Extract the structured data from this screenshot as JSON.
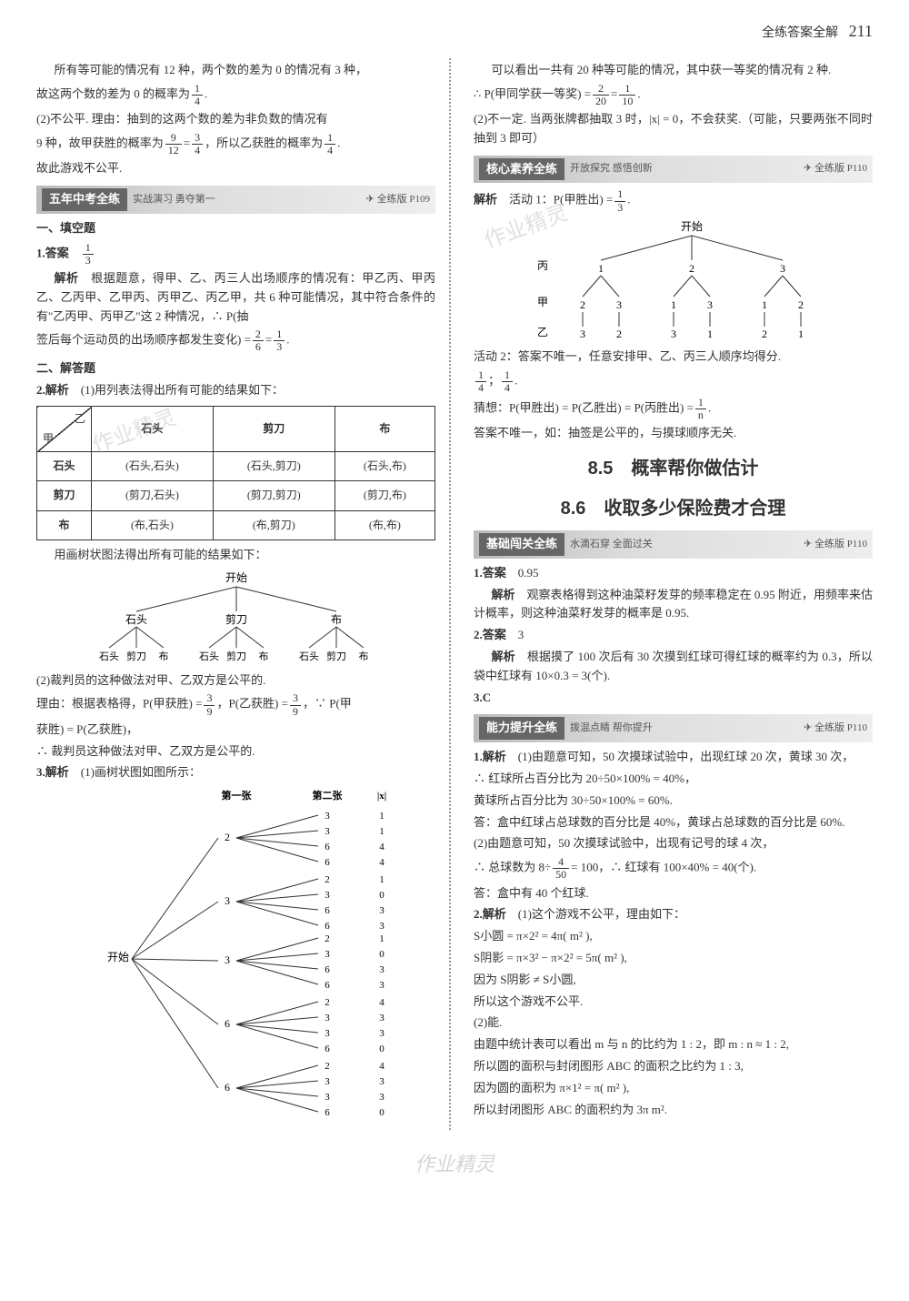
{
  "header": {
    "title": "全练答案全解",
    "page": "211"
  },
  "left": {
    "intro": [
      "所有等可能的情况有 12 种，两个数的差为 0 的情况有 3 种，",
      "故这两个数的差为 0 的概率为 1/4.",
      "(2)不公平. 理由：抽到的这两个数的差为非负数的情况有",
      "9 种，故甲获胜的概率为 9/12 = 3/4，所以乙获胜的概率为 1/4.",
      "故此游戏不公平."
    ],
    "bar1": {
      "title": "五年中考全练",
      "subtitle": "实战演习 勇夺第一",
      "ref": "全练版 P109"
    },
    "h1": "一、填空题",
    "q1_ans_label": "1.答案",
    "q1_ans": "1/3",
    "q1_exp_label": "解析",
    "q1_exp": [
      "根据题意，得甲、乙、丙三人出场顺序的情况有：甲乙丙、甲丙乙、乙丙甲、乙甲丙、丙甲乙、丙乙甲，共 6 种可能情况，其中符合条件的有\"乙丙甲、丙甲乙\"这 2 种情况，∴ P(抽",
      "签后每个运动员的出场顺序都发生变化) = 2/6 = 1/3."
    ],
    "h2": "二、解答题",
    "q2_label": "2.解析",
    "q2_intro": "(1)用列表法得出所有可能的结果如下：",
    "table": {
      "diag_top": "乙",
      "diag_bot": "甲",
      "cols": [
        "石头",
        "剪刀",
        "布"
      ],
      "rows": [
        {
          "h": "石头",
          "cells": [
            "(石头,石头)",
            "(石头,剪刀)",
            "(石头,布)"
          ]
        },
        {
          "h": "剪刀",
          "cells": [
            "(剪刀,石头)",
            "(剪刀,剪刀)",
            "(剪刀,布)"
          ]
        },
        {
          "h": "布",
          "cells": [
            "(布,石头)",
            "(布,剪刀)",
            "(布,布)"
          ]
        }
      ]
    },
    "tree1_caption": "用画树状图法得出所有可能的结果如下：",
    "tree1": {
      "root": "开始",
      "level1": [
        "石头",
        "剪刀",
        "布"
      ],
      "level2": [
        "石头",
        "剪刀",
        "布",
        "石头",
        "剪刀",
        "布",
        "石头",
        "剪刀",
        "布"
      ]
    },
    "q2_part2": [
      "(2)裁判员的这种做法对甲、乙双方是公平的.",
      "理由：根据表格得，P(甲获胜) = 3/9，P(乙获胜) = 3/9，∵ P(甲",
      "获胜) = P(乙获胜)，",
      "∴ 裁判员这种做法对甲、乙双方是公平的."
    ],
    "q3_label": "3.解析",
    "q3_intro": "(1)画树状图如图所示：",
    "tree2": {
      "root": "开始",
      "headers": [
        "第一张",
        "第二张",
        "|x|"
      ],
      "branches": [
        {
          "a": "2",
          "children": [
            [
              "3",
              "1"
            ],
            [
              "3",
              "1"
            ],
            [
              "6",
              "4"
            ],
            [
              "6",
              "4"
            ]
          ]
        },
        {
          "a": "3",
          "children": [
            [
              "2",
              "1"
            ],
            [
              "3",
              "0"
            ],
            [
              "6",
              "3"
            ],
            [
              "6",
              "3"
            ]
          ]
        },
        {
          "a": "3",
          "children": [
            [
              "2",
              "1"
            ],
            [
              "3",
              "0"
            ],
            [
              "6",
              "3"
            ],
            [
              "6",
              "3"
            ]
          ]
        },
        {
          "a": "6",
          "children": [
            [
              "2",
              "4"
            ],
            [
              "3",
              "3"
            ],
            [
              "3",
              "3"
            ],
            [
              "6",
              "0"
            ]
          ]
        },
        {
          "a": "6",
          "children": [
            [
              "2",
              "4"
            ],
            [
              "3",
              "3"
            ],
            [
              "3",
              "3"
            ],
            [
              "6",
              "0"
            ]
          ]
        }
      ]
    }
  },
  "right": {
    "intro": [
      "可以看出一共有 20 种等可能的情况，其中获一等奖的情况有 2 种.",
      "∴ P(甲同学获一等奖) = 2/20 = 1/10.",
      "(2)不一定. 当两张牌都抽取 3 时，|x| = 0，不会获奖.（可能，只要两张不同时抽到 3 即可）"
    ],
    "bar2": {
      "title": "核心素养全练",
      "subtitle": "开放探究 感悟创新",
      "ref": "全练版 P110"
    },
    "act1_label": "解析",
    "act1": "活动 1：P(甲胜出) = 1/3.",
    "tree3": {
      "root": "开始",
      "rows": [
        "丙",
        "甲",
        "乙"
      ],
      "level1": [
        "1",
        "2",
        "3"
      ],
      "level2": [
        "2",
        "3",
        "1",
        "3",
        "1",
        "2"
      ],
      "level3": [
        "3",
        "2",
        "3",
        "1",
        "2",
        "1"
      ]
    },
    "act2": [
      "活动 2：答案不唯一，任意安排甲、乙、丙三人顺序均得分.",
      "1/4；1/4.",
      "猜想：P(甲胜出) = P(乙胜出) = P(丙胜出) = 1/n.",
      "答案不唯一，如：抽签是公平的，与摸球顺序无关."
    ],
    "ch85": "8.5　概率帮你做估计",
    "ch86": "8.6　收取多少保险费才合理",
    "bar3": {
      "title": "基础闯关全练",
      "subtitle": "水滴石穿 全面过关",
      "ref": "全练版 P110"
    },
    "b1_ans_label": "1.答案",
    "b1_ans": "0.95",
    "b1_exp_label": "解析",
    "b1_exp": "观察表格得到这种油菜籽发芽的频率稳定在 0.95 附近，用频率来估计概率，则这种油菜籽发芽的概率是 0.95.",
    "b2_ans_label": "2.答案",
    "b2_ans": "3",
    "b2_exp_label": "解析",
    "b2_exp": "根据摸了 100 次后有 30 次摸到红球可得红球的概率约为 0.3，所以袋中红球有 10×0.3 = 3(个).",
    "b3": "3.C",
    "bar4": {
      "title": "能力提升全练",
      "subtitle": "拨混点睛 帮你提升",
      "ref": "全练版 P110"
    },
    "c1_label": "1.解析",
    "c1": [
      "(1)由题意可知，50 次摸球试验中，出现红球 20 次，黄球 30 次，",
      "∴ 红球所占百分比为 20÷50×100% = 40%，",
      "黄球所占百分比为 30÷50×100% = 60%.",
      "答：盒中红球占总球数的百分比是 40%，黄球占总球数的百分比是 60%.",
      "(2)由题意可知，50 次摸球试验中，出现有记号的球 4 次，",
      "∴ 总球数为 8÷ 4/50 = 100，∴ 红球有 100×40% = 40(个).",
      "答：盒中有 40 个红球."
    ],
    "c2_label": "2.解析",
    "c2": [
      "(1)这个游戏不公平，理由如下：",
      "S小圆 = π×2² = 4π( m² ),",
      "S阴影 = π×3² − π×2² = 5π( m² ),",
      "因为 S阴影 ≠ S小圆,",
      "所以这个游戏不公平.",
      "(2)能.",
      "由题中统计表可以看出 m 与 n 的比约为 1 : 2，即 m : n ≈ 1 : 2,",
      "所以圆的面积与封闭图形 ABC 的面积之比约为 1 : 3,",
      "因为圆的面积为 π×1² = π( m² ),",
      "所以封闭图形 ABC 的面积约为 3π m²."
    ]
  },
  "colors": {
    "text": "#333333",
    "bar_dark": "#666666",
    "bar_light": "#dddddd",
    "border": "#333333",
    "dotted": "#999999",
    "watermark": "rgba(180,180,180,0.4)"
  },
  "fonts": {
    "body_pt": 13,
    "title_pt": 20,
    "small_pt": 11
  }
}
